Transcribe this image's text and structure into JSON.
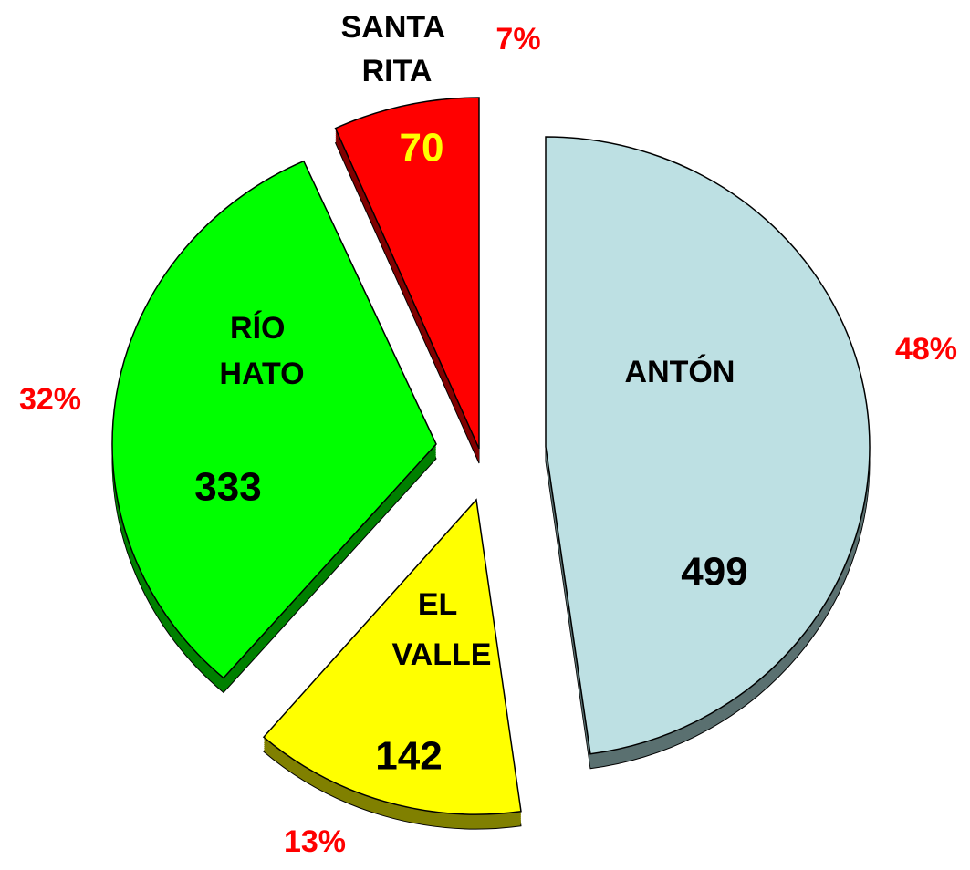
{
  "chart_data": {
    "type": "pie",
    "categories": [
      "ANTÓN",
      "EL VALLE",
      "RÍO HATO",
      "SANTA RITA"
    ],
    "values": [
      499,
      142,
      333,
      70
    ],
    "percent_labels": [
      "48%",
      "13%",
      "32%",
      "7%"
    ],
    "colors": [
      "#bde0e3",
      "#ffff00",
      "#00ff00",
      "#ff0000"
    ]
  }
}
